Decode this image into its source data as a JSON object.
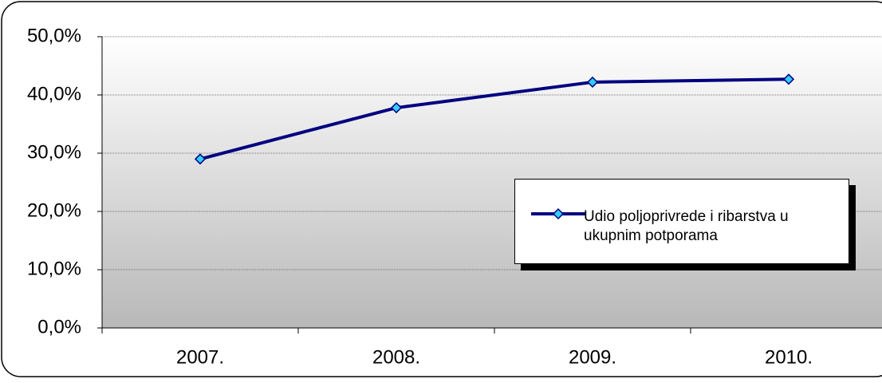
{
  "chart_data": {
    "type": "line",
    "categories": [
      "2007.",
      "2008.",
      "2009.",
      "2010."
    ],
    "series": [
      {
        "name": "Udio poljoprivrede i ribarstva u ukupnim potporama",
        "color": "#000080",
        "marker_color": "#33ccff",
        "values": [
          29.0,
          37.8,
          42.2,
          42.7
        ]
      }
    ],
    "ylim": [
      0,
      50
    ],
    "yticks": [
      {
        "value": 0,
        "label": "0,0%"
      },
      {
        "value": 10,
        "label": "10,0%"
      },
      {
        "value": 20,
        "label": "20,0%"
      },
      {
        "value": 30,
        "label": "30,0%"
      },
      {
        "value": 40,
        "label": "40,0%"
      },
      {
        "value": 50,
        "label": "50,0%"
      }
    ],
    "grid": true,
    "legend": "right"
  }
}
